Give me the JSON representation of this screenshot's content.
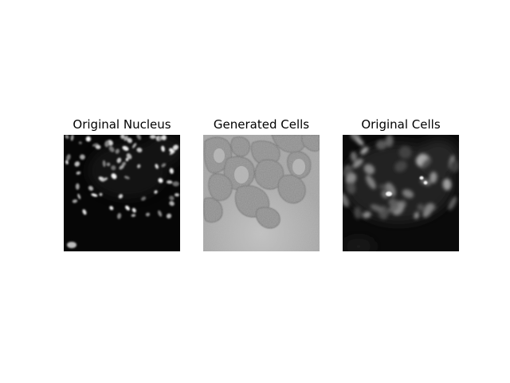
{
  "panels": [
    {
      "title": "Original Nucleus",
      "image": "nucleus-fluorescence-image"
    },
    {
      "title": "Generated Cells",
      "image": "generated-cells-image"
    },
    {
      "title": "Original Cells",
      "image": "cells-fluorescence-image"
    }
  ],
  "colors": {
    "background": "#ffffff",
    "image_dark": "#080808",
    "generated_gray": "#9a9a9a"
  }
}
